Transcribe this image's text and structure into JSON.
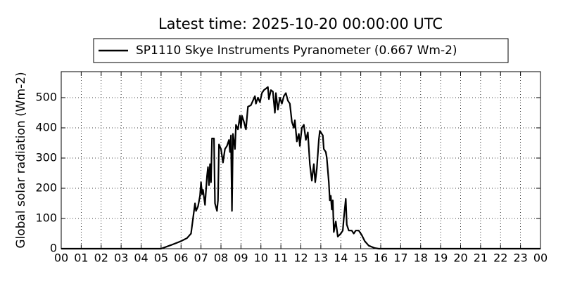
{
  "chart_data": {
    "type": "line",
    "title": "Latest time: 2025-10-20 00:00:00 UTC",
    "ylabel": "Global solar radiation (Wm-2)",
    "grid": true,
    "legend": "top",
    "x": [
      0,
      5.0,
      5.5,
      6.0,
      6.3,
      6.5,
      6.6,
      6.7,
      6.75,
      6.85,
      6.95,
      7.0,
      7.05,
      7.1,
      7.2,
      7.3,
      7.35,
      7.4,
      7.45,
      7.5,
      7.55,
      7.65,
      7.7,
      7.8,
      7.85,
      7.9,
      8.0,
      8.1,
      8.2,
      8.3,
      8.4,
      8.45,
      8.5,
      8.55,
      8.6,
      8.7,
      8.75,
      8.85,
      8.95,
      9.0,
      9.05,
      9.15,
      9.25,
      9.35,
      9.5,
      9.6,
      9.7,
      9.75,
      9.85,
      9.95,
      10.05,
      10.15,
      10.25,
      10.35,
      10.4,
      10.5,
      10.6,
      10.7,
      10.75,
      10.85,
      10.95,
      11.05,
      11.15,
      11.25,
      11.35,
      11.45,
      11.55,
      11.65,
      11.7,
      11.8,
      11.9,
      11.95,
      12.05,
      12.15,
      12.25,
      12.35,
      12.45,
      12.55,
      12.65,
      12.72,
      12.8,
      12.9,
      12.95,
      13.1,
      13.15,
      13.25,
      13.3,
      13.4,
      13.45,
      13.5,
      13.55,
      13.6,
      13.65,
      13.75,
      13.85,
      14.0,
      14.1,
      14.15,
      14.25,
      14.3,
      14.4,
      14.55,
      14.65,
      14.75,
      14.9,
      15.05,
      15.2,
      15.4,
      15.7,
      15.9,
      24
    ],
    "series": [
      {
        "name": "SP1110 Skye Instruments Pyranometer (0.667 Wm-2)",
        "color": "#000000",
        "values": [
          0,
          0,
          12,
          25,
          35,
          50,
          100,
          150,
          125,
          140,
          175,
          220,
          180,
          195,
          145,
          240,
          270,
          210,
          280,
          220,
          365,
          365,
          150,
          125,
          160,
          345,
          330,
          285,
          330,
          340,
          360,
          320,
          375,
          125,
          380,
          330,
          410,
          395,
          440,
          400,
          440,
          420,
          395,
          470,
          475,
          490,
          505,
          480,
          500,
          485,
          515,
          525,
          530,
          535,
          495,
          525,
          520,
          450,
          515,
          460,
          500,
          480,
          505,
          515,
          490,
          480,
          420,
          400,
          425,
          355,
          380,
          340,
          400,
          410,
          360,
          385,
          280,
          225,
          280,
          220,
          265,
          360,
          390,
          375,
          330,
          320,
          300,
          220,
          160,
          175,
          130,
          160,
          55,
          90,
          40,
          50,
          60,
          100,
          165,
          80,
          60,
          60,
          50,
          60,
          60,
          45,
          25,
          10,
          2,
          0,
          0
        ]
      }
    ],
    "xlim": [
      0,
      24
    ],
    "xticks": [
      {
        "value": 0,
        "label": "00"
      },
      {
        "value": 1,
        "label": "01"
      },
      {
        "value": 2,
        "label": "02"
      },
      {
        "value": 3,
        "label": "03"
      },
      {
        "value": 4,
        "label": "04"
      },
      {
        "value": 5,
        "label": "05"
      },
      {
        "value": 6,
        "label": "06"
      },
      {
        "value": 7,
        "label": "07"
      },
      {
        "value": 8,
        "label": "08"
      },
      {
        "value": 9,
        "label": "09"
      },
      {
        "value": 10,
        "label": "10"
      },
      {
        "value": 11,
        "label": "11"
      },
      {
        "value": 12,
        "label": "12"
      },
      {
        "value": 13,
        "label": "13"
      },
      {
        "value": 14,
        "label": "14"
      },
      {
        "value": 15,
        "label": "15"
      },
      {
        "value": 16,
        "label": "16"
      },
      {
        "value": 17,
        "label": "17"
      },
      {
        "value": 18,
        "label": "18"
      },
      {
        "value": 19,
        "label": "19"
      },
      {
        "value": 20,
        "label": "20"
      },
      {
        "value": 21,
        "label": "21"
      },
      {
        "value": 22,
        "label": "22"
      },
      {
        "value": 23,
        "label": "23"
      },
      {
        "value": 24,
        "label": "00"
      }
    ],
    "ylim": [
      0,
      586
    ],
    "yticks": [
      0,
      100,
      200,
      300,
      400,
      500
    ]
  }
}
